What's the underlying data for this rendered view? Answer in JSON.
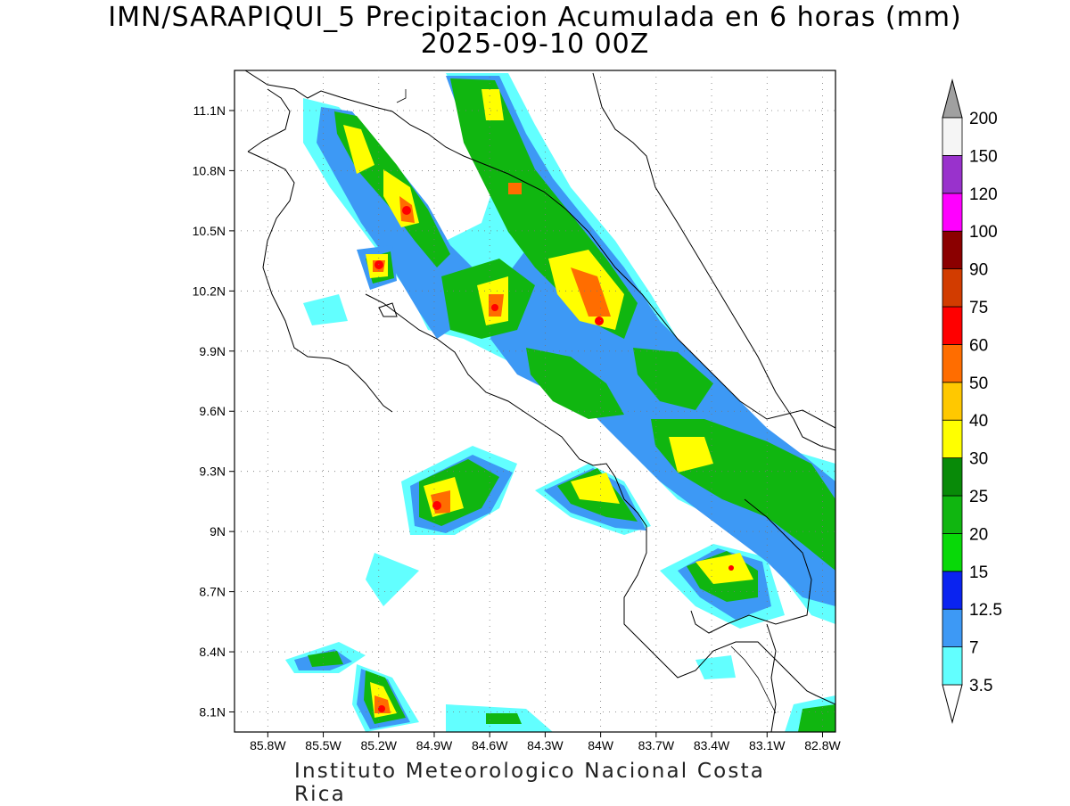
{
  "header": {
    "title": "IMN/SARAPIQUI_5 Precipitacion Acumulada en 6 horas (mm)",
    "datetime": "2025-09-10 00Z"
  },
  "footer": {
    "credit": "Instituto Meteorologico Nacional Costa Rica"
  },
  "map": {
    "lat_range": [
      8.0,
      11.3
    ],
    "lon_range": [
      -85.98,
      -82.73
    ],
    "lat_ticks": [
      "11.1N",
      "10.8N",
      "10.5N",
      "10.2N",
      "9.9N",
      "9.6N",
      "9.3N",
      "9N",
      "8.7N",
      "8.4N",
      "8.1N"
    ],
    "lon_ticks": [
      "85.8W",
      "85.5W",
      "85.2W",
      "84.9W",
      "84.6W",
      "84.3W",
      "84W",
      "83.7W",
      "83.4W",
      "83.1W",
      "82.8W"
    ],
    "gridlines": true
  },
  "colorbar": {
    "levels": [
      "3.5",
      "7",
      "12.5",
      "15",
      "20",
      "25",
      "30",
      "40",
      "50",
      "60",
      "75",
      "90",
      "100",
      "120",
      "150",
      "200"
    ],
    "colors": [
      "#62ffff",
      "#3d99f5",
      "#0a23f0",
      "#08d908",
      "#10b610",
      "#088a08",
      "#ffff00",
      "#ffc800",
      "#ff6d00",
      "#ff0000",
      "#d23c00",
      "#8b0000",
      "#ff00ff",
      "#9932cc",
      "#f5f5f5"
    ]
  }
}
